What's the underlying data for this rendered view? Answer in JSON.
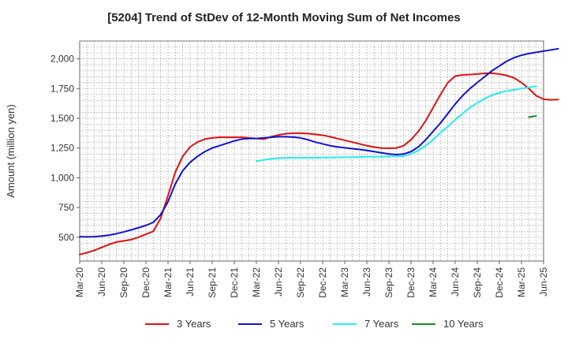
{
  "chart_data": {
    "type": "line",
    "title": "[5204]  Trend of StDev of 12-Month Moving Sum of Net Incomes",
    "xlabel": "",
    "ylabel": "Amount (million yen)",
    "ylim": [
      300,
      2150
    ],
    "yticks": [
      500,
      750,
      1000,
      1250,
      1500,
      1750,
      2000
    ],
    "ytick_labels": [
      "500",
      "750",
      "1,000",
      "1,250",
      "1,500",
      "1,750",
      "2,000"
    ],
    "xticks": [
      "Mar-20",
      "Jun-20",
      "Sep-20",
      "Dec-20",
      "Mar-21",
      "Jun-21",
      "Sep-21",
      "Dec-21",
      "Mar-22",
      "Jun-22",
      "Sep-22",
      "Dec-22",
      "Mar-23",
      "Jun-23",
      "Sep-23",
      "Dec-23",
      "Mar-24",
      "Jun-24",
      "Sep-24",
      "Dec-24",
      "Mar-25",
      "Jun-25"
    ],
    "x_start": "Mar-20",
    "grid": true,
    "legend_position": "bottom",
    "series": [
      {
        "name": "3 Years",
        "color": "#dd1111",
        "start_index": 0,
        "values": [
          355,
          370,
          390,
          415,
          440,
          460,
          470,
          480,
          500,
          525,
          550,
          660,
          850,
          1050,
          1180,
          1260,
          1300,
          1325,
          1335,
          1340,
          1340,
          1340,
          1340,
          1335,
          1330,
          1325,
          1345,
          1360,
          1370,
          1375,
          1375,
          1372,
          1365,
          1358,
          1345,
          1330,
          1315,
          1300,
          1285,
          1270,
          1258,
          1250,
          1248,
          1250,
          1270,
          1320,
          1390,
          1480,
          1590,
          1700,
          1800,
          1855,
          1865,
          1868,
          1872,
          1878,
          1880,
          1872,
          1860,
          1840,
          1800,
          1750,
          1690,
          1660,
          1655,
          1658
        ]
      },
      {
        "name": "5 Years",
        "color": "#1111cc",
        "start_index": 0,
        "values": [
          505,
          503,
          505,
          510,
          518,
          530,
          545,
          562,
          580,
          600,
          625,
          690,
          800,
          950,
          1060,
          1130,
          1180,
          1220,
          1250,
          1270,
          1290,
          1310,
          1325,
          1330,
          1330,
          1335,
          1340,
          1345,
          1345,
          1342,
          1335,
          1320,
          1300,
          1285,
          1270,
          1260,
          1252,
          1245,
          1238,
          1230,
          1220,
          1210,
          1200,
          1195,
          1200,
          1220,
          1260,
          1320,
          1390,
          1460,
          1540,
          1620,
          1690,
          1750,
          1800,
          1850,
          1900,
          1940,
          1980,
          2010,
          2030,
          2045,
          2055,
          2065,
          2075,
          2085
        ]
      },
      {
        "name": "7 Years",
        "color": "#22eeee",
        "start_index": 24,
        "values": [
          1140,
          1150,
          1160,
          1165,
          1168,
          1168,
          1168,
          1168,
          1168,
          1170,
          1170,
          1172,
          1173,
          1174,
          1175,
          1176,
          1176,
          1178,
          1180,
          1180,
          1183,
          1200,
          1230,
          1270,
          1320,
          1380,
          1430,
          1490,
          1540,
          1590,
          1630,
          1665,
          1695,
          1715,
          1730,
          1740,
          1750,
          1760,
          1770
        ]
      },
      {
        "name": "10 Years",
        "color": "#228822",
        "start_index": 61,
        "values": [
          1510,
          1520
        ]
      }
    ]
  }
}
